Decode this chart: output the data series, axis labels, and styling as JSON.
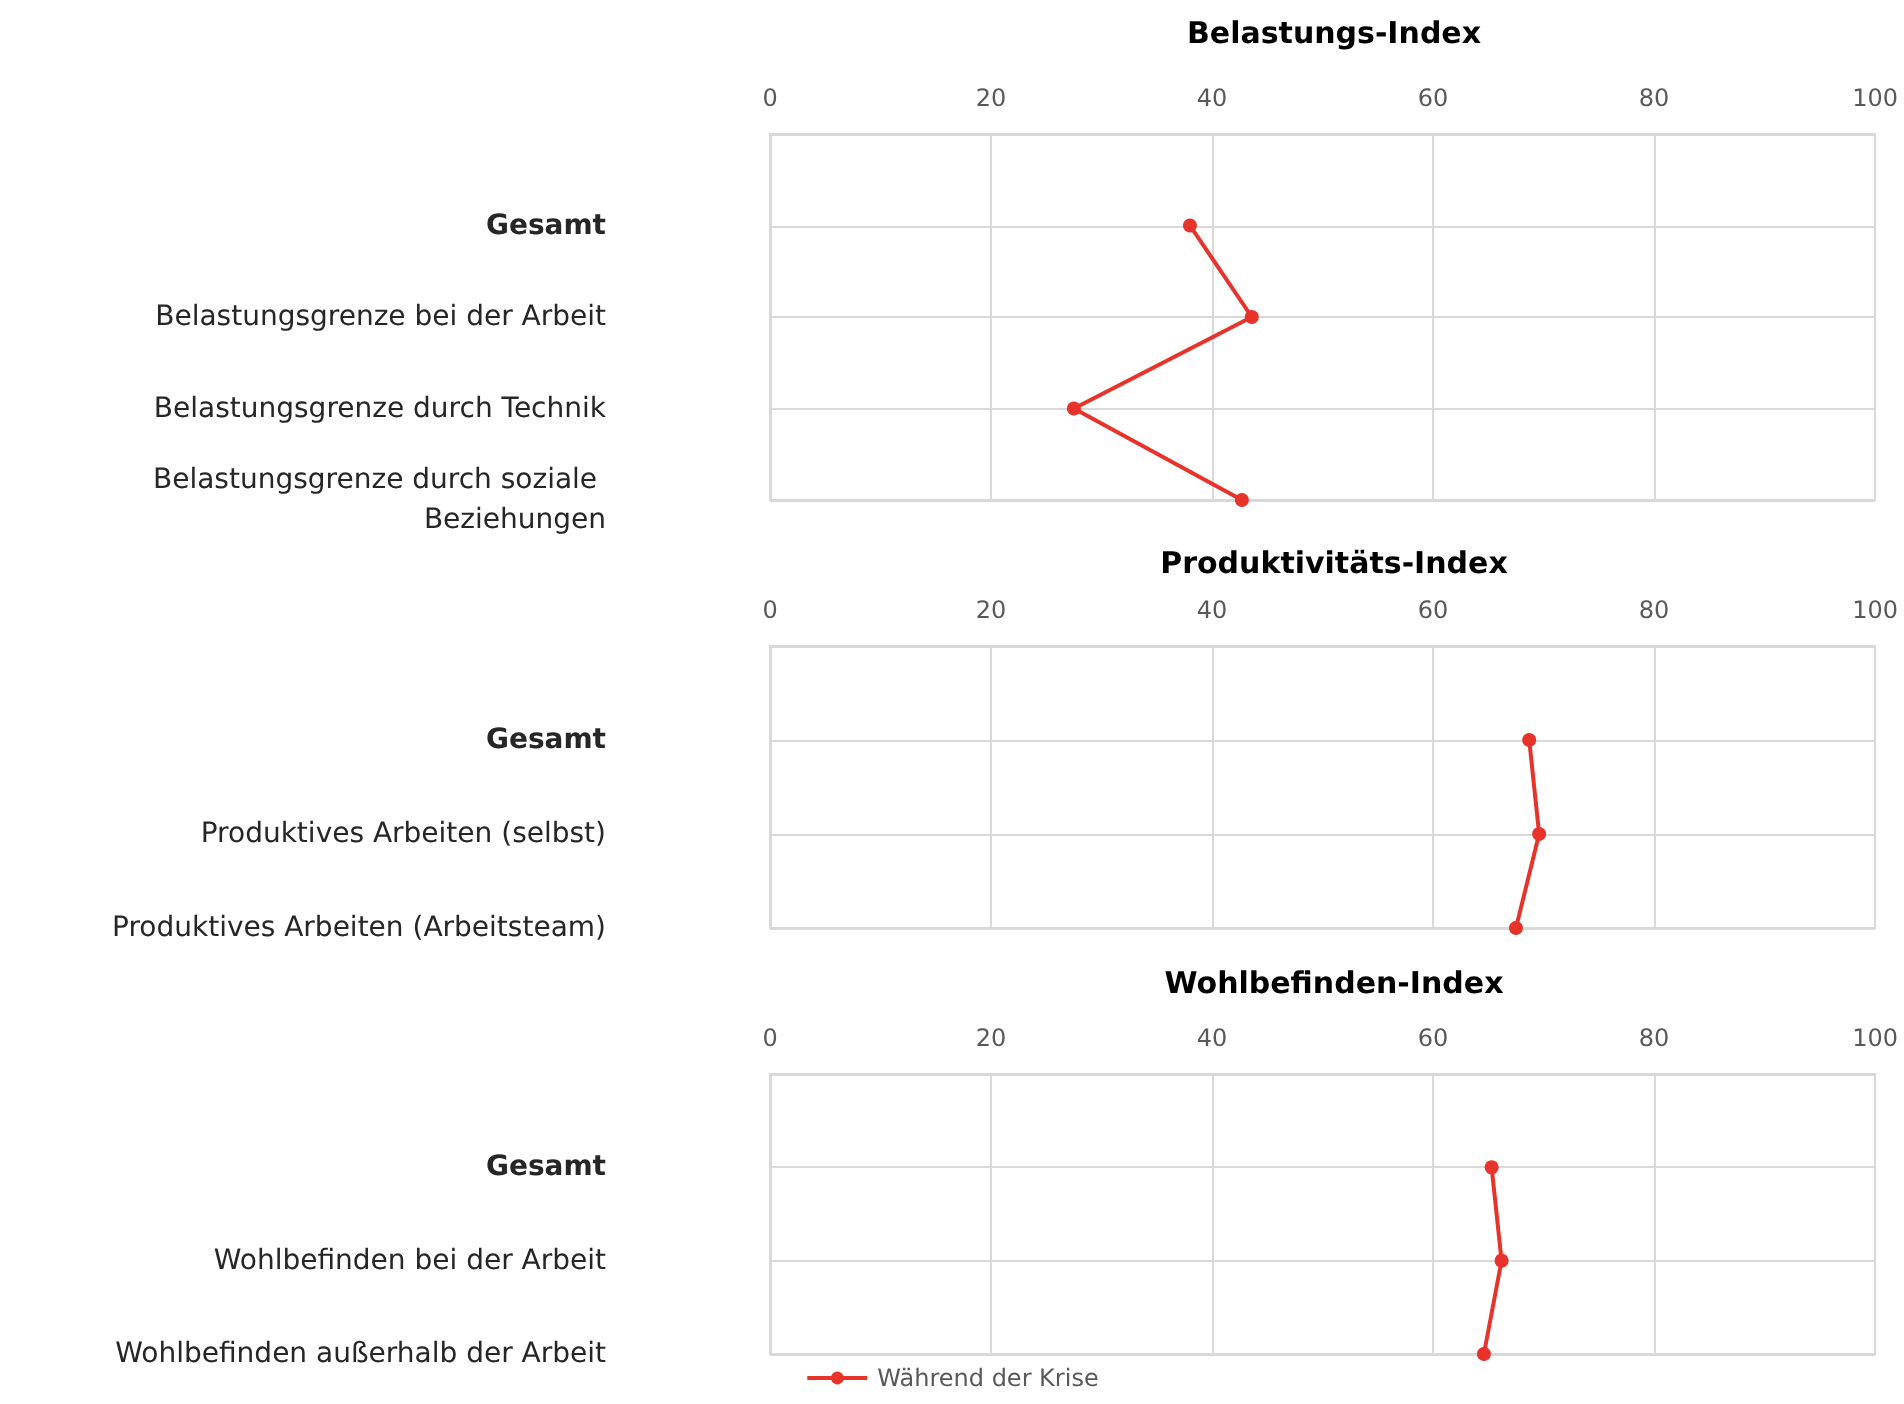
{
  "chart_data": [
    {
      "type": "line",
      "orientation": "horizontal",
      "title": "Belastungs-Index",
      "categories": [
        "Gesamt",
        "Belastungsgrenze bei der Arbeit",
        "Belastungsgrenze durch Technik",
        "Belastungsgrenze durch soziale Beziehungen"
      ],
      "series": [
        {
          "color": "#e8332a",
          "values": [
            38,
            43.6,
            27.5,
            42.7
          ]
        }
      ],
      "xlim": [
        0,
        100
      ],
      "xticks": [
        0,
        20,
        40,
        60,
        80,
        100
      ],
      "grid": true,
      "marker": "circle",
      "legend": false
    },
    {
      "type": "line",
      "orientation": "horizontal",
      "title": "Produktivitäts-Index",
      "categories": [
        "Gesamt",
        "Produktives Arbeiten (selbst)",
        "Produktives Arbeiten (Arbeitsteam)"
      ],
      "series": [
        {
          "color": "#e8332a",
          "values": [
            68.7,
            69.6,
            67.5
          ]
        }
      ],
      "xlim": [
        0,
        100
      ],
      "xticks": [
        0,
        20,
        40,
        60,
        80,
        100
      ],
      "grid": true,
      "marker": "circle",
      "legend": false
    },
    {
      "type": "line",
      "orientation": "horizontal",
      "title": "Wohlbefinden-Index",
      "categories": [
        "Gesamt",
        "Wohlbefinden bei der Arbeit",
        "Wohlbefinden außerhalb der Arbeit"
      ],
      "series": [
        {
          "name": "Während der Krise",
          "color": "#e8332a",
          "values": [
            65.3,
            66.2,
            64.6
          ]
        }
      ],
      "xlim": [
        0,
        100
      ],
      "xticks": [
        0,
        20,
        40,
        60,
        80,
        100
      ],
      "grid": true,
      "marker": "circle",
      "legend": "bottom"
    }
  ]
}
